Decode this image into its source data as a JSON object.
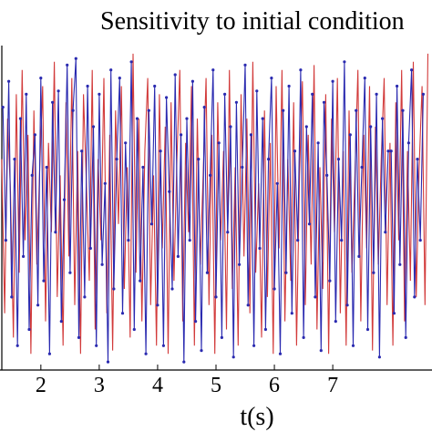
{
  "chart_data": {
    "type": "line",
    "title": "Sensitivity to initial condition",
    "xlabel": "t(s)",
    "ylabel": "",
    "xlim": [
      1.3,
      8.7
    ],
    "ylim": [
      -1.0,
      1.0
    ],
    "x_ticks": [
      2,
      3,
      4,
      5,
      6,
      7
    ],
    "grid": false,
    "colors": {
      "series_a": "#2a2ab0",
      "series_b": "#d23a3a",
      "axis": "#000000"
    },
    "series": [
      {
        "values": [
          [
            1.35,
            0.62
          ],
          [
            1.4,
            -0.2
          ],
          [
            1.45,
            0.78
          ],
          [
            1.5,
            -0.55
          ],
          [
            1.55,
            0.3
          ],
          [
            1.6,
            -0.85
          ],
          [
            1.65,
            0.55
          ],
          [
            1.7,
            -0.3
          ],
          [
            1.75,
            0.7
          ],
          [
            1.8,
            -0.75
          ],
          [
            1.85,
            0.2
          ],
          [
            1.9,
            0.45
          ],
          [
            1.95,
            -0.6
          ],
          [
            2.0,
            0.8
          ],
          [
            2.05,
            -0.45
          ],
          [
            2.1,
            0.25
          ],
          [
            2.15,
            -0.9
          ],
          [
            2.2,
            0.65
          ],
          [
            2.25,
            -0.15
          ],
          [
            2.3,
            0.72
          ],
          [
            2.35,
            -0.7
          ],
          [
            2.4,
            0.05
          ],
          [
            2.45,
            0.88
          ],
          [
            2.5,
            -0.4
          ],
          [
            2.55,
            0.6
          ],
          [
            2.6,
            0.92
          ],
          [
            2.65,
            -0.8
          ],
          [
            2.7,
            0.35
          ],
          [
            2.75,
            -0.55
          ],
          [
            2.8,
            0.75
          ],
          [
            2.85,
            -0.25
          ],
          [
            2.9,
            0.5
          ],
          [
            2.95,
            -0.85
          ],
          [
            3.0,
            0.7
          ],
          [
            3.05,
            -0.35
          ],
          [
            3.1,
            0.15
          ],
          [
            3.15,
            -0.95
          ],
          [
            3.2,
            0.85
          ],
          [
            3.25,
            -0.5
          ],
          [
            3.3,
            0.3
          ],
          [
            3.35,
            0.8
          ],
          [
            3.4,
            -0.65
          ],
          [
            3.45,
            0.4
          ],
          [
            3.5,
            -0.2
          ],
          [
            3.55,
            0.9
          ],
          [
            3.6,
            -0.75
          ],
          [
            3.65,
            0.55
          ],
          [
            3.7,
            -0.45
          ],
          [
            3.75,
            0.25
          ],
          [
            3.8,
            -0.9
          ],
          [
            3.85,
            0.6
          ],
          [
            3.9,
            -0.1
          ],
          [
            3.95,
            0.75
          ],
          [
            4.0,
            -0.6
          ],
          [
            4.05,
            0.35
          ],
          [
            4.1,
            -0.85
          ],
          [
            4.15,
            0.68
          ],
          [
            4.2,
            0.1
          ],
          [
            4.25,
            -0.5
          ],
          [
            4.3,
            0.82
          ],
          [
            4.35,
            -0.3
          ],
          [
            4.4,
            0.45
          ],
          [
            4.45,
            -0.95
          ],
          [
            4.5,
            0.55
          ],
          [
            4.55,
            -0.2
          ],
          [
            4.6,
            0.78
          ],
          [
            4.65,
            -0.7
          ],
          [
            4.7,
            0.3
          ],
          [
            4.75,
            -0.88
          ],
          [
            4.8,
            0.62
          ],
          [
            4.85,
            -0.4
          ],
          [
            4.9,
            0.2
          ],
          [
            4.95,
            0.85
          ],
          [
            5.0,
            -0.55
          ],
          [
            5.05,
            0.4
          ],
          [
            5.1,
            -0.8
          ],
          [
            5.15,
            0.7
          ],
          [
            5.2,
            -0.15
          ],
          [
            5.25,
            0.5
          ],
          [
            5.3,
            -0.92
          ],
          [
            5.35,
            0.65
          ],
          [
            5.4,
            -0.35
          ],
          [
            5.45,
            0.25
          ],
          [
            5.5,
            0.88
          ],
          [
            5.55,
            -0.6
          ],
          [
            5.6,
            0.45
          ],
          [
            5.65,
            -0.85
          ],
          [
            5.7,
            0.72
          ],
          [
            5.75,
            -0.25
          ],
          [
            5.8,
            0.55
          ],
          [
            5.85,
            -0.75
          ],
          [
            5.9,
            0.3
          ],
          [
            5.95,
            0.8
          ],
          [
            6.0,
            -0.5
          ],
          [
            6.05,
            0.15
          ],
          [
            6.1,
            -0.9
          ],
          [
            6.15,
            0.6
          ],
          [
            6.2,
            -0.4
          ],
          [
            6.25,
            0.75
          ],
          [
            6.3,
            -0.65
          ],
          [
            6.35,
            0.35
          ],
          [
            6.4,
            -0.2
          ],
          [
            6.45,
            0.85
          ],
          [
            6.5,
            -0.8
          ],
          [
            6.55,
            0.5
          ],
          [
            6.6,
            -0.1
          ],
          [
            6.65,
            0.7
          ],
          [
            6.7,
            -0.55
          ],
          [
            6.75,
            0.4
          ],
          [
            6.8,
            -0.88
          ],
          [
            6.85,
            0.65
          ],
          [
            6.9,
            0.2
          ],
          [
            6.95,
            -0.45
          ],
          [
            7.0,
            0.78
          ],
          [
            7.05,
            -0.7
          ],
          [
            7.1,
            0.3
          ],
          [
            7.15,
            -0.2
          ],
          [
            7.2,
            0.9
          ],
          [
            7.25,
            -0.6
          ],
          [
            7.3,
            0.45
          ],
          [
            7.35,
            -0.85
          ],
          [
            7.4,
            0.6
          ],
          [
            7.45,
            -0.3
          ],
          [
            7.5,
            0.25
          ],
          [
            7.55,
            0.8
          ],
          [
            7.6,
            -0.75
          ],
          [
            7.65,
            0.5
          ],
          [
            7.7,
            -0.4
          ],
          [
            7.75,
            0.7
          ],
          [
            7.8,
            -0.92
          ],
          [
            7.85,
            0.55
          ],
          [
            7.9,
            -0.15
          ],
          [
            7.95,
            0.35
          ],
          [
            8.0,
            0.35
          ],
          [
            8.05,
            -0.65
          ],
          [
            8.1,
            0.75
          ],
          [
            8.15,
            -0.35
          ],
          [
            8.2,
            0.6
          ],
          [
            8.25,
            -0.8
          ],
          [
            8.3,
            0.4
          ],
          [
            8.35,
            0.85
          ],
          [
            8.4,
            -0.55
          ],
          [
            8.45,
            0.3
          ],
          [
            8.5,
            -0.2
          ],
          [
            8.55,
            0.7
          ]
        ]
      },
      {
        "values": [
          [
            1.33,
            0.3
          ],
          [
            1.38,
            -0.65
          ],
          [
            1.43,
            0.55
          ],
          [
            1.48,
            0.1
          ],
          [
            1.53,
            -0.8
          ],
          [
            1.58,
            0.7
          ],
          [
            1.63,
            -0.4
          ],
          [
            1.68,
            0.85
          ],
          [
            1.73,
            -0.2
          ],
          [
            1.78,
            0.45
          ],
          [
            1.83,
            -0.9
          ],
          [
            1.88,
            0.6
          ],
          [
            1.93,
            -0.35
          ],
          [
            1.98,
            0.25
          ],
          [
            2.03,
            0.75
          ],
          [
            2.08,
            -0.7
          ],
          [
            2.13,
            0.4
          ],
          [
            2.18,
            -0.15
          ],
          [
            2.23,
            0.9
          ],
          [
            2.28,
            -0.55
          ],
          [
            2.33,
            0.2
          ],
          [
            2.38,
            -0.85
          ],
          [
            2.43,
            0.65
          ],
          [
            2.48,
            -0.3
          ],
          [
            2.53,
            0.8
          ],
          [
            2.58,
            -0.6
          ],
          [
            2.63,
            0.35
          ],
          [
            2.68,
            -0.9
          ],
          [
            2.73,
            0.7
          ],
          [
            2.78,
            0.15
          ],
          [
            2.83,
            -0.45
          ],
          [
            2.88,
            0.85
          ],
          [
            2.93,
            -0.75
          ],
          [
            2.98,
            0.3
          ],
          [
            3.03,
            -0.2
          ],
          [
            3.08,
            0.8
          ],
          [
            3.13,
            -0.65
          ],
          [
            3.18,
            0.45
          ],
          [
            3.23,
            -0.88
          ],
          [
            3.28,
            0.6
          ],
          [
            3.33,
            -0.1
          ],
          [
            3.38,
            0.75
          ],
          [
            3.43,
            -0.5
          ],
          [
            3.48,
            0.25
          ],
          [
            3.53,
            -0.8
          ],
          [
            3.58,
            0.95
          ],
          [
            3.63,
            -0.4
          ],
          [
            3.68,
            0.55
          ],
          [
            3.73,
            -0.7
          ],
          [
            3.78,
            0.35
          ],
          [
            3.83,
            0.8
          ],
          [
            3.88,
            -0.6
          ],
          [
            3.93,
            0.2
          ],
          [
            3.98,
            -0.85
          ],
          [
            4.03,
            0.7
          ],
          [
            4.08,
            -0.25
          ],
          [
            4.13,
            0.5
          ],
          [
            4.18,
            -0.9
          ],
          [
            4.23,
            0.65
          ],
          [
            4.28,
            -0.45
          ],
          [
            4.33,
            0.3
          ],
          [
            4.38,
            0.85
          ],
          [
            4.43,
            -0.7
          ],
          [
            4.48,
            0.4
          ],
          [
            4.53,
            -0.15
          ],
          [
            4.58,
            0.75
          ],
          [
            4.63,
            -0.85
          ],
          [
            4.68,
            0.55
          ],
          [
            4.73,
            -0.35
          ],
          [
            4.78,
            0.2
          ],
          [
            4.83,
            0.8
          ],
          [
            4.88,
            -0.6
          ],
          [
            4.93,
            0.45
          ],
          [
            4.98,
            -0.9
          ],
          [
            5.03,
            0.65
          ],
          [
            5.08,
            -0.2
          ],
          [
            5.13,
            0.35
          ],
          [
            5.18,
            -0.75
          ],
          [
            5.23,
            0.85
          ],
          [
            5.28,
            -0.5
          ],
          [
            5.33,
            0.25
          ],
          [
            5.38,
            -0.85
          ],
          [
            5.43,
            0.7
          ],
          [
            5.48,
            -0.3
          ],
          [
            5.53,
            0.55
          ],
          [
            5.58,
            -0.65
          ],
          [
            5.63,
            0.9
          ],
          [
            5.68,
            -0.4
          ],
          [
            5.73,
            0.15
          ],
          [
            5.78,
            -0.8
          ],
          [
            5.83,
            0.6
          ],
          [
            5.88,
            -0.55
          ],
          [
            5.93,
            0.4
          ],
          [
            5.98,
            -0.9
          ],
          [
            6.03,
            0.75
          ],
          [
            6.08,
            -0.25
          ],
          [
            6.13,
            0.85
          ],
          [
            6.18,
            -0.7
          ],
          [
            6.23,
            0.3
          ],
          [
            6.28,
            -0.45
          ],
          [
            6.33,
            0.65
          ],
          [
            6.38,
            -0.85
          ],
          [
            6.43,
            0.2
          ],
          [
            6.48,
            0.78
          ],
          [
            6.53,
            -0.6
          ],
          [
            6.58,
            0.45
          ],
          [
            6.63,
            -0.35
          ],
          [
            6.68,
            0.88
          ],
          [
            6.73,
            -0.75
          ],
          [
            6.78,
            0.25
          ],
          [
            6.83,
            -0.5
          ],
          [
            6.88,
            0.7
          ],
          [
            6.93,
            -0.9
          ],
          [
            6.98,
            0.55
          ],
          [
            7.03,
            -0.15
          ],
          [
            7.08,
            0.8
          ],
          [
            7.13,
            -0.65
          ],
          [
            7.18,
            0.35
          ],
          [
            7.23,
            -0.85
          ],
          [
            7.28,
            0.6
          ],
          [
            7.33,
            -0.4
          ],
          [
            7.38,
            0.2
          ],
          [
            7.43,
            0.85
          ],
          [
            7.48,
            -0.7
          ],
          [
            7.53,
            0.45
          ],
          [
            7.58,
            -0.25
          ],
          [
            7.63,
            0.75
          ],
          [
            7.68,
            -0.88
          ],
          [
            7.73,
            0.5
          ],
          [
            7.78,
            -0.35
          ],
          [
            7.83,
            0.3
          ],
          [
            7.88,
            0.8
          ],
          [
            7.93,
            -0.6
          ],
          [
            7.98,
            0.4
          ],
          [
            8.03,
            -0.85
          ],
          [
            8.08,
            0.65
          ],
          [
            8.13,
            -0.2
          ],
          [
            8.18,
            0.85
          ],
          [
            8.23,
            -0.7
          ],
          [
            8.28,
            0.35
          ],
          [
            8.33,
            -0.45
          ],
          [
            8.38,
            0.9
          ],
          [
            8.43,
            -0.55
          ],
          [
            8.48,
            0.25
          ],
          [
            8.53,
            0.75
          ],
          [
            8.58,
            -0.6
          ],
          [
            8.63,
            0.95
          ]
        ]
      }
    ]
  }
}
